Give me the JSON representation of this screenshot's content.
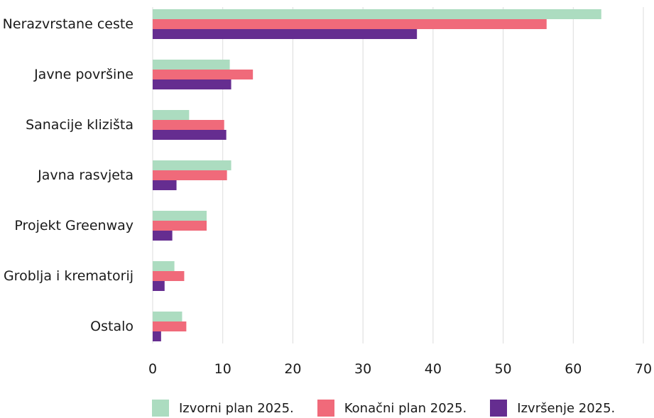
{
  "chart_data": {
    "type": "bar",
    "orientation": "horizontal",
    "categories": [
      "Nerazvrstane ceste",
      "Javne površine",
      "Sanacije klizišta",
      "Javna rasvjeta",
      "Projekt Greenway",
      "Groblja i krematorij",
      "Ostalo"
    ],
    "series": [
      {
        "name": "Izvorni plan 2025.",
        "color": "#acdcc0",
        "values": [
          64.0,
          11.0,
          5.2,
          11.2,
          7.7,
          3.1,
          4.2
        ]
      },
      {
        "name": "Konačni plan 2025.",
        "color": "#f06a7a",
        "values": [
          56.2,
          14.3,
          10.2,
          10.6,
          7.7,
          4.5,
          4.8
        ]
      },
      {
        "name": "Izvršenje 2025.",
        "color": "#652d90",
        "values": [
          37.7,
          11.2,
          10.5,
          3.4,
          2.8,
          1.7,
          1.2
        ]
      }
    ],
    "xlim": [
      0,
      70
    ],
    "xticks": [
      0,
      10,
      20,
      30,
      40,
      50,
      60,
      70
    ],
    "title": "",
    "xlabel": "",
    "ylabel": "",
    "grid": "vertical",
    "legend_position": "bottom"
  }
}
